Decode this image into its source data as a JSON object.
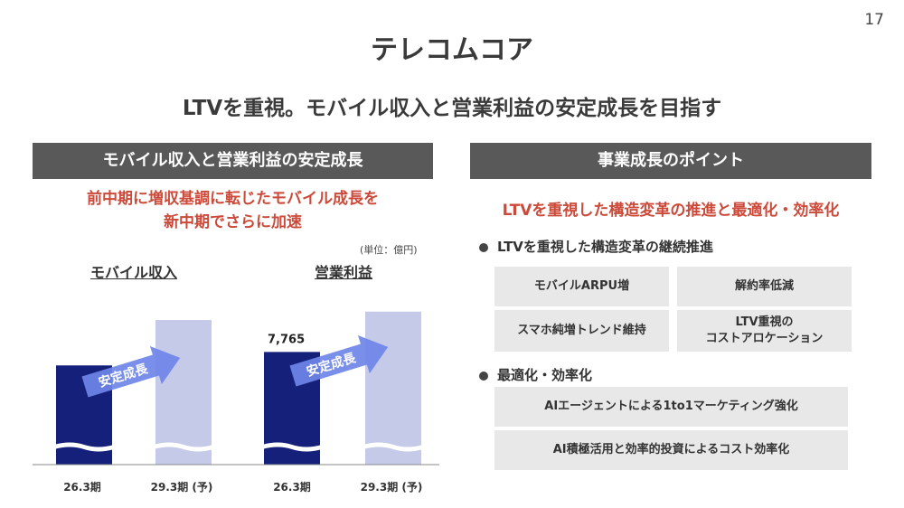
{
  "page_number": "17",
  "title": "テレコムコア",
  "subtitle": "LTVを重視。モバイル収入と営業利益の安定成長を目指す",
  "left_panel": {
    "header": "モバイル収入と営業利益の安定成長",
    "highlight_line1": "前中期に増収基調に転じたモバイル成長を",
    "highlight_line2": "新中期でさらに加速",
    "unit": "(単位：億円)",
    "arrow_label": "安定成長"
  },
  "right_panel": {
    "header": "事業成長のポイント",
    "highlight": "LTVを重視した構造変革の推進と最適化・効率化",
    "section1": {
      "label": "LTVを重視した構造変革の継続推進",
      "items": [
        "モバイルARPU増",
        "解約率低減",
        "スマホ純増トレンド維持",
        "LTV重視の\nコストアロケーション"
      ]
    },
    "section2": {
      "label": "最適化・効率化",
      "items": [
        "AIエージェントによる1to1マーケティング強化",
        "AI積極活用と効率的投資によるコスト効率化"
      ]
    }
  },
  "chart_data": [
    {
      "type": "bar",
      "title": "モバイル収入",
      "categories": [
        "26.3期",
        "29.3期 (予)"
      ],
      "values": [
        null,
        null
      ],
      "relative_heights": [
        0.59,
        0.86
      ],
      "axis_break": true,
      "colors": [
        "#14207a",
        "#c5cae9"
      ]
    },
    {
      "type": "bar",
      "title": "営業利益",
      "categories": [
        "26.3期",
        "29.3期 (予)"
      ],
      "values": [
        7765,
        null
      ],
      "data_labels": [
        "7,765",
        ""
      ],
      "relative_heights": [
        0.67,
        0.91
      ],
      "axis_break": true,
      "colors": [
        "#14207a",
        "#c5cae9"
      ]
    }
  ]
}
